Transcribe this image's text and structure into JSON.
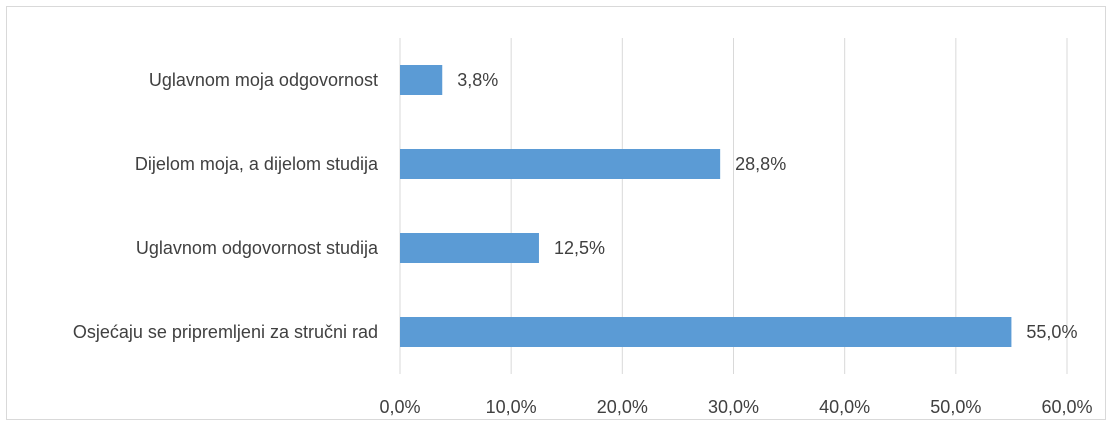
{
  "chart_data": {
    "type": "bar",
    "orientation": "horizontal",
    "title": "",
    "xlabel": "",
    "ylabel": "",
    "categories": [
      "Uglavnom moja odgovornost",
      "Dijelom moja, a dijelom studija",
      "Uglavnom odgovornost studija",
      "Osjećaju se pripremljeni za stručni rad"
    ],
    "values": [
      3.8,
      28.8,
      12.5,
      55.0
    ],
    "value_labels": [
      "3,8%",
      "28,8%",
      "12,5%",
      "55,0%"
    ],
    "xlim": [
      0,
      60
    ],
    "x_ticks": [
      0,
      10,
      20,
      30,
      40,
      50,
      60
    ],
    "x_tick_labels": [
      "0,0%",
      "10,0%",
      "20,0%",
      "30,0%",
      "40,0%",
      "50,0%",
      "60,0%"
    ],
    "grid": "vertical",
    "legend": "none",
    "bar_color": "#5b9bd5",
    "grid_color": "#d9d9d9",
    "text_color": "#404040"
  }
}
